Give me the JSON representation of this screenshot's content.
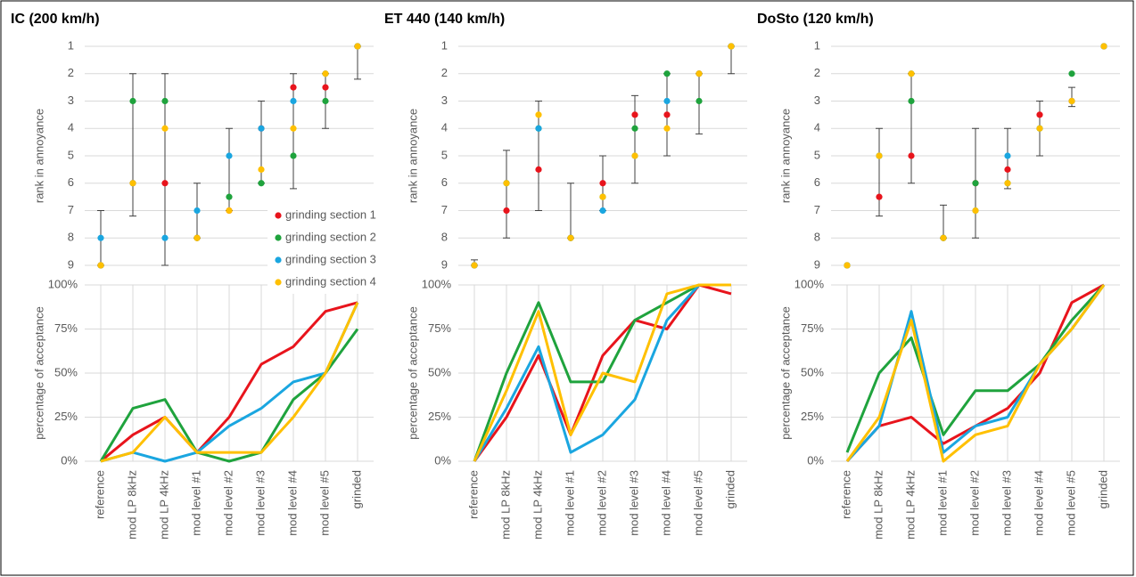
{
  "chart_data": [
    {
      "type": "scatter",
      "title": "IC (200 km/h)",
      "y_label": "rank in annoyance",
      "ylim": [
        9,
        1
      ],
      "yticks": [
        1,
        2,
        3,
        4,
        5,
        6,
        7,
        8,
        9
      ],
      "grid": true,
      "legend": "inside-bottom-right",
      "series": [
        {
          "name": "grinding section 1",
          "color": "#e8141c",
          "values": [
            9,
            6,
            6,
            8,
            7,
            4,
            2.5,
            2.5,
            1
          ]
        },
        {
          "name": "grinding section 2",
          "color": "#1fa33d",
          "values": [
            9,
            3,
            3,
            8,
            6.5,
            6,
            5,
            3,
            1
          ]
        },
        {
          "name": "grinding section 3",
          "color": "#1aa6e0",
          "values": [
            8,
            6,
            8,
            7,
            5,
            4,
            3,
            2,
            1
          ]
        },
        {
          "name": "grinding section 4",
          "color": "#ffc000",
          "values": [
            9,
            6,
            4,
            8,
            7,
            5.5,
            4,
            2,
            1
          ]
        }
      ],
      "error_low": [
        9,
        7.2,
        9,
        8,
        7,
        6,
        6.2,
        4,
        2.2
      ],
      "error_high": [
        7,
        2,
        2,
        6,
        4,
        3,
        2,
        2,
        1
      ],
      "acceptance": {
        "type": "line",
        "y_label": "percentage of acceptance",
        "ylim": [
          0,
          100
        ],
        "yticks": [
          {
            "value": 0,
            "label": "0%"
          },
          {
            "value": 25,
            "label": "25%"
          },
          {
            "value": 50,
            "label": "50%"
          },
          {
            "value": 75,
            "label": "75%"
          },
          {
            "value": 100,
            "label": "100%"
          }
        ],
        "categories": [
          "reference",
          "mod LP 8kHz",
          "mod LP 4kHz",
          "mod level #1",
          "mod level #2",
          "mod level #3",
          "mod level #4",
          "mod level #5",
          "grinded"
        ],
        "series": [
          {
            "values": [
              0,
              15,
              25,
              5,
              25,
              55,
              65,
              85,
              90
            ]
          },
          {
            "values": [
              0,
              30,
              35,
              5,
              0,
              5,
              35,
              50,
              75
            ]
          },
          {
            "values": [
              0,
              5,
              0,
              5,
              20,
              30,
              45,
              50,
              90
            ]
          },
          {
            "values": [
              0,
              5,
              25,
              5,
              5,
              5,
              25,
              50,
              90
            ]
          }
        ]
      }
    },
    {
      "type": "scatter",
      "title": "ET 440 (140 km/h)",
      "y_label": "rank in annoyance",
      "ylim": [
        9,
        1
      ],
      "yticks": [
        1,
        2,
        3,
        4,
        5,
        6,
        7,
        8,
        9
      ],
      "grid": true,
      "series": [
        {
          "values": [
            9,
            7,
            5.5,
            8,
            6,
            3.5,
            3.5,
            2,
            1
          ]
        },
        {
          "values": [
            9,
            6,
            4,
            8,
            6.5,
            4,
            2,
            3,
            1
          ]
        },
        {
          "values": [
            9,
            6,
            4,
            8,
            7,
            5,
            3,
            2,
            1
          ]
        },
        {
          "values": [
            9,
            6,
            3.5,
            8,
            6.5,
            5,
            4,
            2,
            1
          ]
        }
      ],
      "error_low": [
        9,
        8,
        7,
        8,
        7,
        6,
        5,
        4.2,
        2
      ],
      "error_high": [
        8.8,
        4.8,
        3,
        6,
        5,
        2.8,
        2,
        2,
        1
      ],
      "acceptance": {
        "type": "line",
        "y_label": "percentage of acceptance",
        "ylim": [
          0,
          100
        ],
        "yticks": [
          {
            "value": 0,
            "label": "0%"
          },
          {
            "value": 25,
            "label": "25%"
          },
          {
            "value": 50,
            "label": "50%"
          },
          {
            "value": 75,
            "label": "75%"
          },
          {
            "value": 100,
            "label": "100%"
          }
        ],
        "categories": [
          "reference",
          "mod LP 8kHz",
          "mod LP 4kHz",
          "mod level #1",
          "mod level #2",
          "mod level #3",
          "mod level #4",
          "mod level #5",
          "grinded"
        ],
        "series": [
          {
            "values": [
              0,
              25,
              60,
              15,
              60,
              80,
              75,
              100,
              95
            ]
          },
          {
            "values": [
              0,
              50,
              90,
              45,
              45,
              80,
              90,
              100,
              100
            ]
          },
          {
            "values": [
              0,
              30,
              65,
              5,
              15,
              35,
              80,
              100,
              100
            ]
          },
          {
            "values": [
              0,
              40,
              85,
              15,
              50,
              45,
              95,
              100,
              100
            ]
          }
        ]
      }
    },
    {
      "type": "scatter",
      "title": "DoSto (120 km/h)",
      "y_label": "rank in annoyance",
      "ylim": [
        9,
        1
      ],
      "yticks": [
        1,
        2,
        3,
        4,
        5,
        6,
        7,
        8,
        9
      ],
      "grid": true,
      "series": [
        {
          "values": [
            9,
            6.5,
            5,
            8,
            6,
            5.5,
            3.5,
            3,
            1
          ]
        },
        {
          "values": [
            9,
            5,
            3,
            8,
            6,
            6,
            4,
            2,
            1
          ]
        },
        {
          "values": [
            9,
            5,
            2,
            8,
            7,
            5,
            4,
            3,
            1
          ]
        },
        {
          "values": [
            9,
            5,
            2,
            8,
            7,
            6,
            4,
            3,
            1
          ]
        }
      ],
      "error_low": [
        null,
        7.2,
        6,
        8,
        8,
        6.2,
        5,
        3.2,
        null
      ],
      "error_high": [
        null,
        4,
        2,
        6.8,
        4,
        4,
        3,
        2.5,
        null
      ],
      "acceptance": {
        "type": "line",
        "y_label": "percentage of acceptance",
        "ylim": [
          0,
          100
        ],
        "yticks": [
          {
            "value": 0,
            "label": "0%"
          },
          {
            "value": 25,
            "label": "25%"
          },
          {
            "value": 50,
            "label": "50%"
          },
          {
            "value": 75,
            "label": "75%"
          },
          {
            "value": 100,
            "label": "100%"
          }
        ],
        "categories": [
          "reference",
          "mod LP 8kHz",
          "mod LP 4kHz",
          "mod level #1",
          "mod level #2",
          "mod level #3",
          "mod level #4",
          "mod level #5",
          "grinded"
        ],
        "series": [
          {
            "values": [
              0,
              20,
              25,
              10,
              20,
              30,
              50,
              90,
              100
            ]
          },
          {
            "values": [
              5,
              50,
              70,
              15,
              40,
              40,
              55,
              80,
              100
            ]
          },
          {
            "values": [
              0,
              20,
              85,
              5,
              20,
              25,
              55,
              75,
              100
            ]
          },
          {
            "values": [
              0,
              25,
              80,
              0,
              15,
              20,
              55,
              75,
              100
            ]
          }
        ]
      }
    }
  ]
}
